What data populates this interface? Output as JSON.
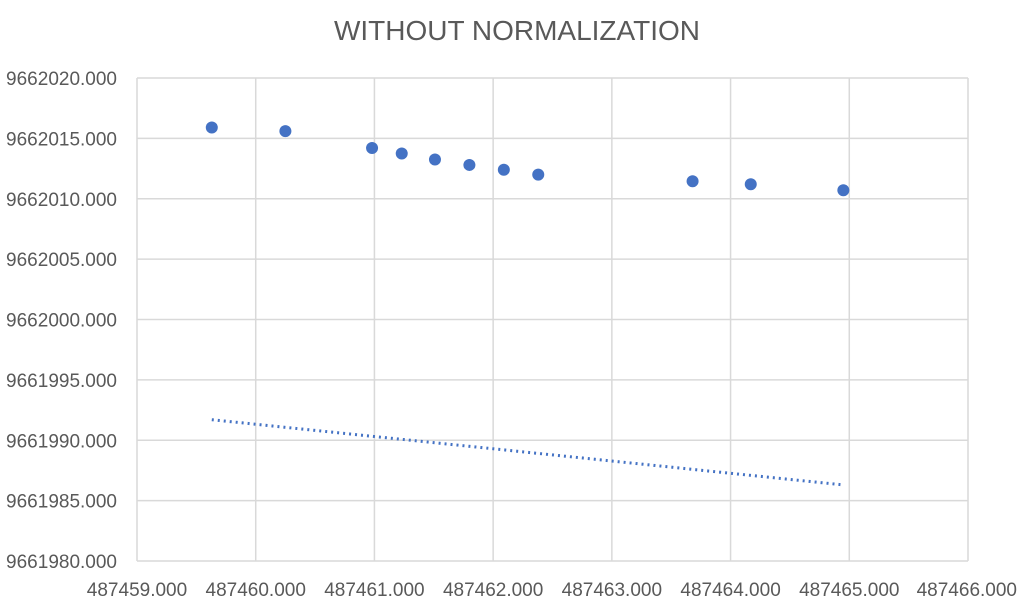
{
  "chart_data": {
    "type": "scatter",
    "title": "WITHOUT NORMALIZATION",
    "xlabel": "",
    "ylabel": "",
    "xlim": [
      487459.0,
      487466.0
    ],
    "ylim": [
      9661980.0,
      9662020.0
    ],
    "x_ticks": [
      "487459.000",
      "487460.000",
      "487461.000",
      "487462.000",
      "487463.000",
      "487464.000",
      "487465.000",
      "487466.000"
    ],
    "y_ticks": [
      "9661980.000",
      "9661985.000",
      "9661990.000",
      "9661995.000",
      "9662000.000",
      "9662005.000",
      "9662010.000",
      "9662015.000",
      "9662020.000"
    ],
    "grid": true,
    "legend": "none",
    "color": "#4472c4",
    "series": [
      {
        "points": [
          {
            "x": 487459.63,
            "y": 9662015.9
          },
          {
            "x": 487460.25,
            "y": 9662015.6
          },
          {
            "x": 487460.98,
            "y": 9662014.2
          },
          {
            "x": 487461.23,
            "y": 9662013.75
          },
          {
            "x": 487461.51,
            "y": 9662013.25
          },
          {
            "x": 487461.8,
            "y": 9662012.8
          },
          {
            "x": 487462.09,
            "y": 9662012.4
          },
          {
            "x": 487462.38,
            "y": 9662012.0
          },
          {
            "x": 487463.68,
            "y": 9662011.45
          },
          {
            "x": 487464.17,
            "y": 9662011.2
          },
          {
            "x": 487464.95,
            "y": 9662010.7
          }
        ]
      }
    ],
    "trendline": {
      "style": "dotted",
      "start": {
        "x": 487459.63,
        "y": 9661991.7
      },
      "end": {
        "x": 487464.95,
        "y": 9661986.3
      }
    }
  }
}
